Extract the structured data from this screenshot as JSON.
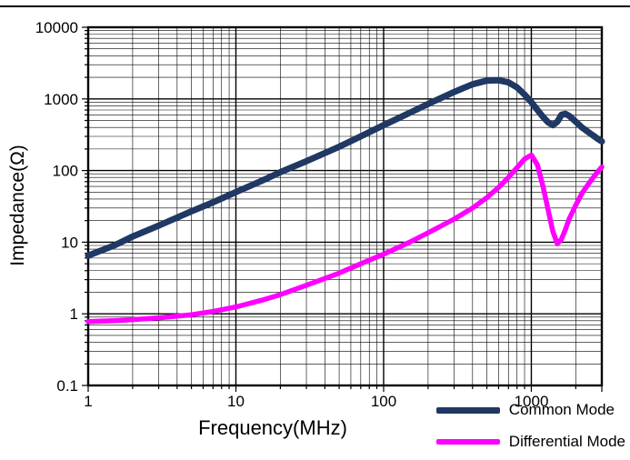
{
  "chart_data": {
    "type": "line",
    "xlabel": "Frequency(MHz)",
    "ylabel": "Impedance(Ω)",
    "x_scale": "log",
    "y_scale": "log",
    "xlim": [
      1,
      3000
    ],
    "ylim": [
      0.1,
      10000
    ],
    "x_ticks": [
      1,
      10,
      100,
      1000
    ],
    "y_ticks": [
      0.1,
      1,
      10,
      100,
      1000,
      10000
    ],
    "grid": {
      "major": true,
      "minor": true
    },
    "legend_position": "bottom-right",
    "series": [
      {
        "name": "Common Mode",
        "color": "#1F3864",
        "x": [
          1,
          1.5,
          2,
          3,
          5,
          7,
          10,
          15,
          20,
          30,
          50,
          70,
          100,
          150,
          200,
          300,
          400,
          500,
          600,
          700,
          800,
          900,
          1000,
          1100,
          1200,
          1300,
          1400,
          1500,
          1600,
          1700,
          1800,
          2000,
          2200,
          2500,
          2800,
          3000
        ],
        "y": [
          6.5,
          9,
          12,
          17,
          27,
          36,
          50,
          72,
          95,
          135,
          215,
          300,
          430,
          640,
          850,
          1250,
          1600,
          1800,
          1820,
          1700,
          1450,
          1150,
          900,
          700,
          560,
          470,
          430,
          480,
          600,
          620,
          580,
          480,
          400,
          330,
          280,
          255
        ]
      },
      {
        "name": "Differential Mode",
        "color": "#FF00FF",
        "x": [
          1,
          1.5,
          2,
          3,
          5,
          7,
          10,
          15,
          20,
          30,
          50,
          70,
          100,
          150,
          200,
          300,
          400,
          500,
          600,
          700,
          800,
          900,
          1000,
          1100,
          1200,
          1300,
          1400,
          1500,
          1600,
          1700,
          1800,
          2000,
          2200,
          2500,
          2800,
          3000
        ],
        "y": [
          0.78,
          0.8,
          0.83,
          0.88,
          0.97,
          1.08,
          1.25,
          1.55,
          1.85,
          2.5,
          3.7,
          5.0,
          6.8,
          10,
          13.5,
          21,
          30,
          42,
          58,
          80,
          110,
          145,
          165,
          120,
          60,
          28,
          14,
          9.5,
          11,
          15,
          21,
          33,
          48,
          70,
          95,
          112
        ]
      }
    ]
  }
}
